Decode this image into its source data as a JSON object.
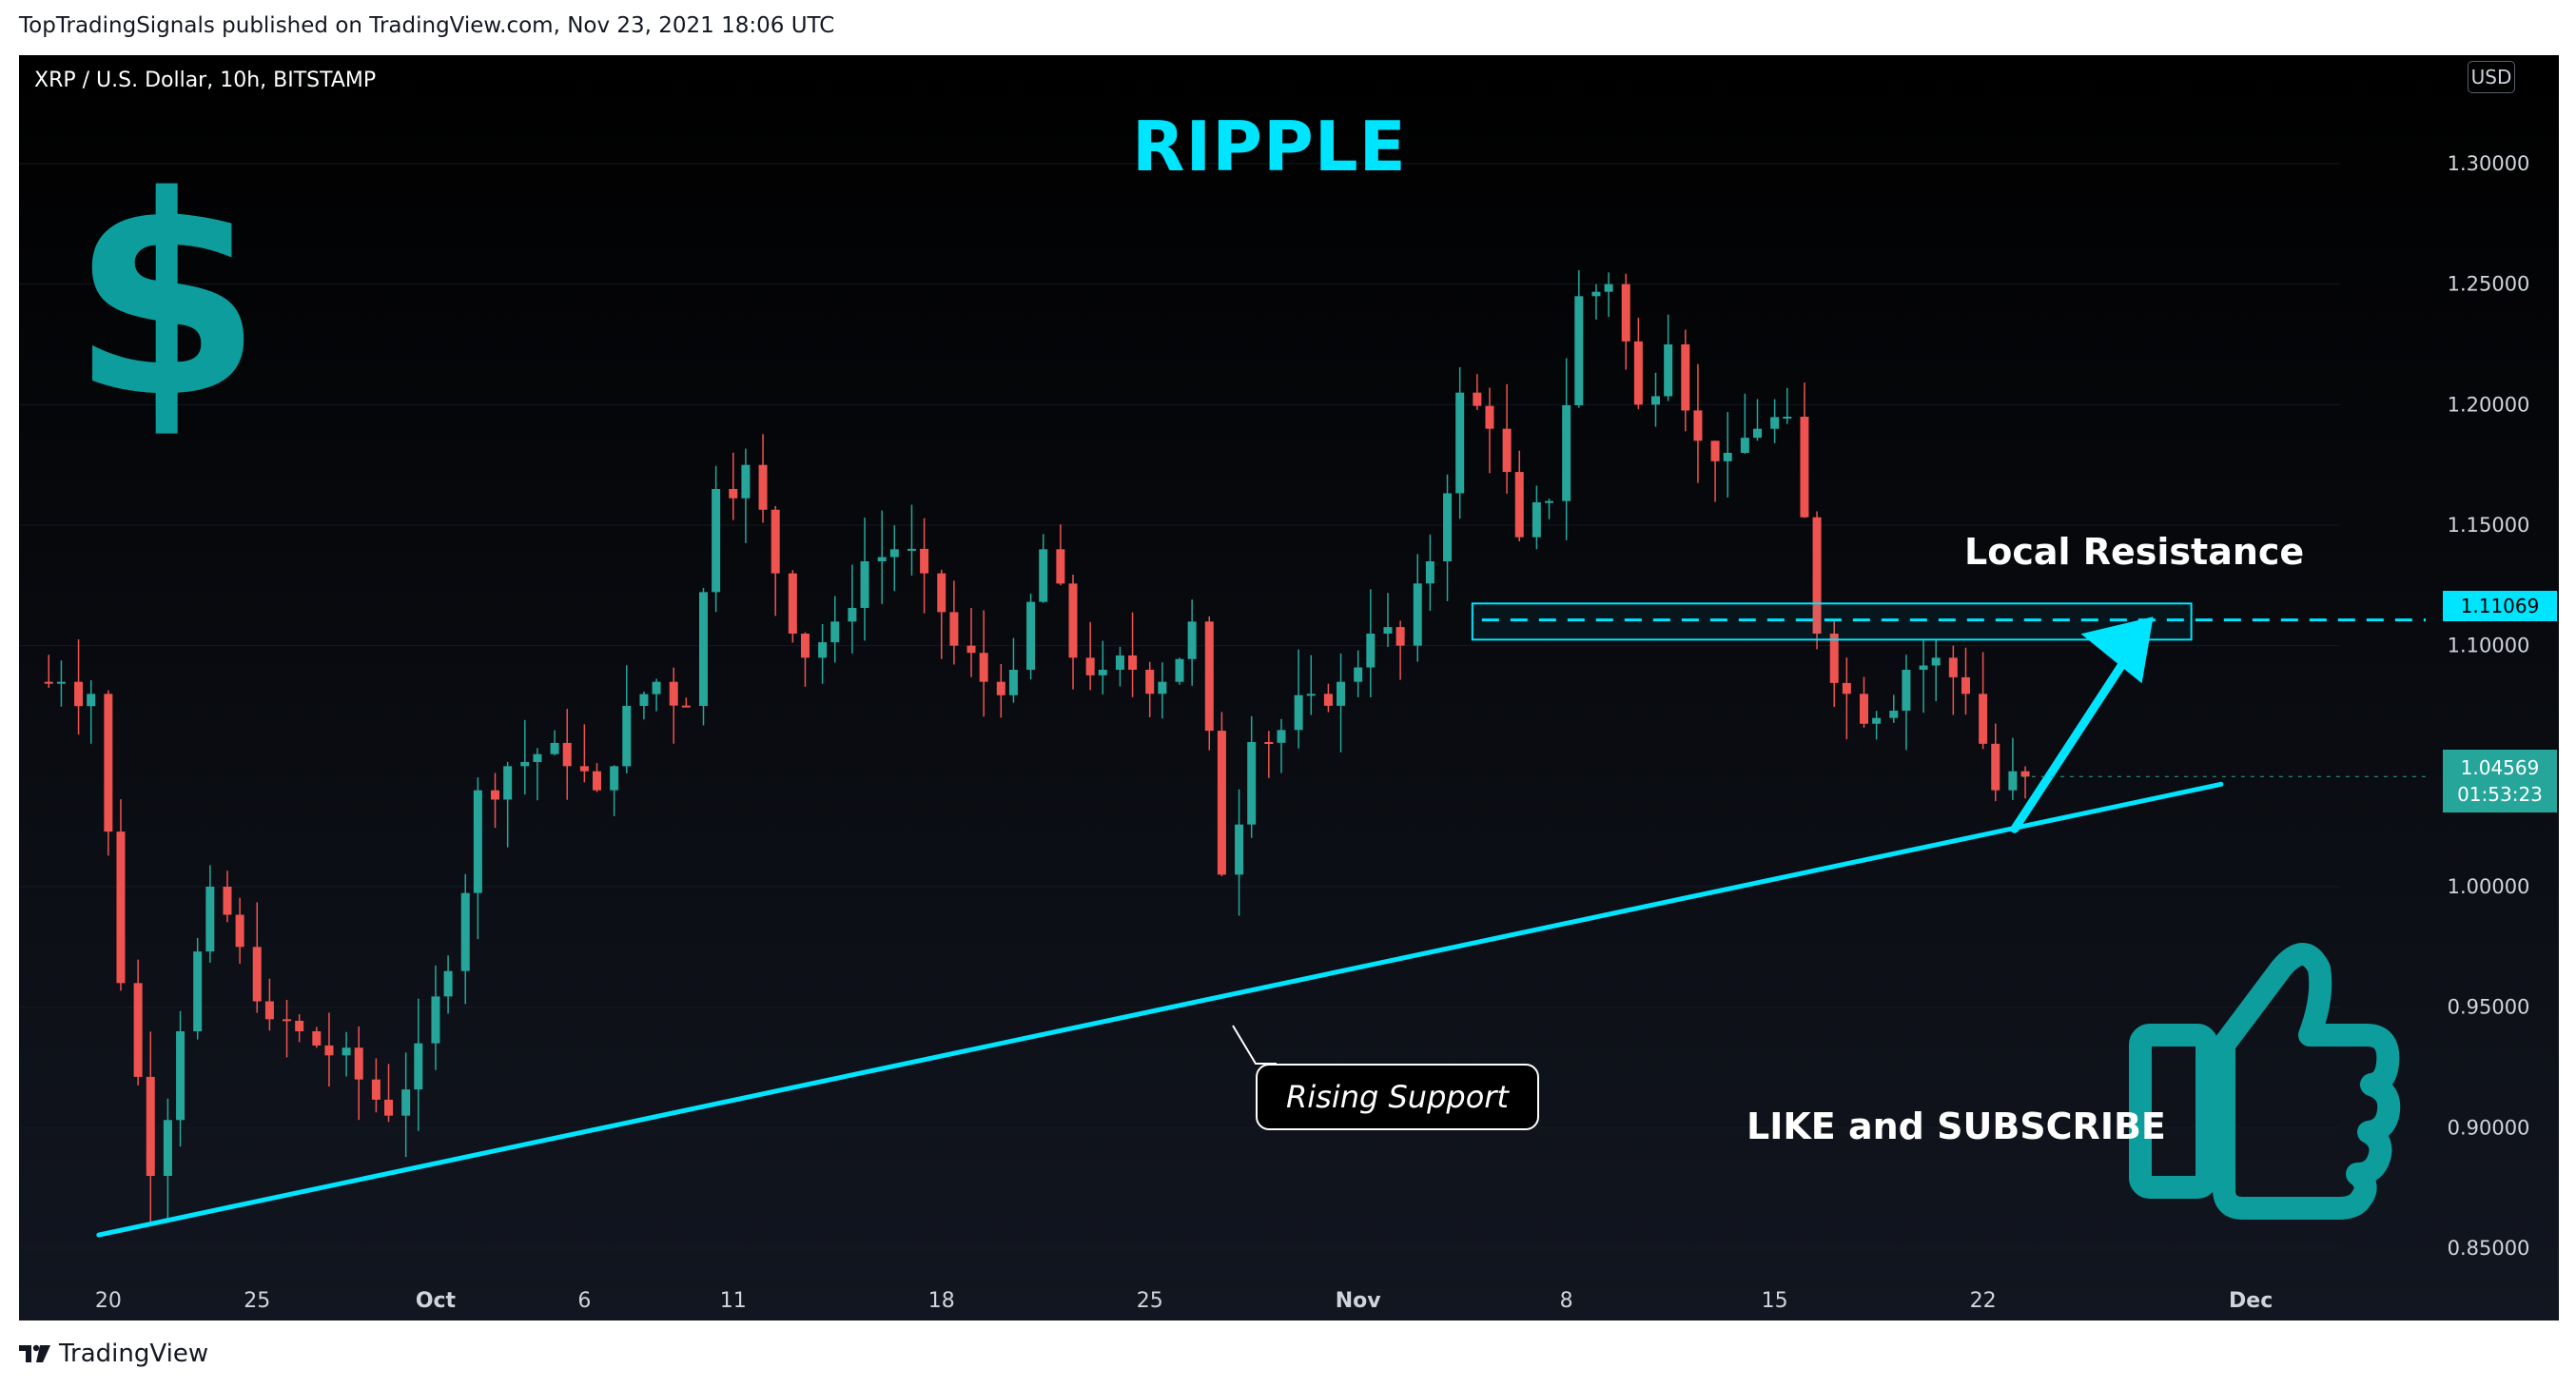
{
  "publisher": "TopTradingSignals published on TradingView.com, Nov 23, 2021 18:06 UTC",
  "symbol_title": "XRP / U.S. Dollar, 10h, BITSTAMP",
  "currency_badge": "USD",
  "annotations": {
    "title": "RIPPLE",
    "resistance_label": "Local Resistance",
    "support_label": "Rising Support",
    "cta_label": "LIKE and SUBSCRIBE"
  },
  "price_tags": {
    "resistance": "1.11069",
    "current_price": "1.04569",
    "countdown": "01:53:23"
  },
  "footer_logo": "TradingView",
  "colors": {
    "accent": "#00e5ff",
    "icon_teal": "#0d9d9d",
    "up_candle": "#26a69a",
    "down_candle": "#ef5350",
    "background": "#000000"
  },
  "icons": [
    "dollar-icon",
    "thumbs-up-icon",
    "tradingview-logo-icon"
  ],
  "chart_data": {
    "type": "candlestick",
    "y_tick_labels": [
      "1.30000",
      "1.25000",
      "1.20000",
      "1.15000",
      "1.10000",
      "1.00000",
      "0.95000",
      "0.90000",
      "0.85000"
    ],
    "y_ticks": [
      1.3,
      1.25,
      1.2,
      1.15,
      1.1,
      1.0,
      0.95,
      0.9,
      0.85
    ],
    "ylim": [
      0.835,
      1.345
    ],
    "x_tick_labels": [
      "20",
      "25",
      "Oct",
      "6",
      "11",
      "18",
      "25",
      "Nov",
      "8",
      "15",
      "22",
      "Dec"
    ],
    "x_ticks": [
      "2021-09-20",
      "2021-09-25",
      "2021-10-01",
      "2021-10-06",
      "2021-10-11",
      "2021-10-18",
      "2021-10-25",
      "2021-11-01",
      "2021-11-08",
      "2021-11-15",
      "2021-11-22",
      "2021-12-01"
    ],
    "xlim": [
      "2021-09-17",
      "2021-12-04"
    ],
    "resistance_level": 1.11069,
    "resistance_zone": [
      1.1025,
      1.1175
    ],
    "support_line": [
      {
        "x": "2021-09-20",
        "y": 0.8555
      },
      {
        "x": "2021-11-30",
        "y": 1.0425
      }
    ],
    "last_price": 1.04569,
    "closes": [
      {
        "x": "2021-09-18",
        "y": 1.085
      },
      {
        "x": "2021-09-19",
        "y": 1.08
      },
      {
        "x": "2021-09-20",
        "y": 0.96
      },
      {
        "x": "2021-09-21",
        "y": 0.88
      },
      {
        "x": "2021-09-22",
        "y": 0.94
      },
      {
        "x": "2021-09-23",
        "y": 1.0
      },
      {
        "x": "2021-09-24",
        "y": 0.975
      },
      {
        "x": "2021-09-25",
        "y": 0.945
      },
      {
        "x": "2021-09-26",
        "y": 0.94
      },
      {
        "x": "2021-09-27",
        "y": 0.93
      },
      {
        "x": "2021-09-28",
        "y": 0.92
      },
      {
        "x": "2021-09-29",
        "y": 0.905
      },
      {
        "x": "2021-09-30",
        "y": 0.935
      },
      {
        "x": "2021-10-01",
        "y": 0.965
      },
      {
        "x": "2021-10-02",
        "y": 1.04
      },
      {
        "x": "2021-10-03",
        "y": 1.05
      },
      {
        "x": "2021-10-04",
        "y": 1.055
      },
      {
        "x": "2021-10-05",
        "y": 1.05
      },
      {
        "x": "2021-10-06",
        "y": 1.04
      },
      {
        "x": "2021-10-07",
        "y": 1.075
      },
      {
        "x": "2021-10-08",
        "y": 1.085
      },
      {
        "x": "2021-10-09",
        "y": 1.075
      },
      {
        "x": "2021-10-10",
        "y": 1.165
      },
      {
        "x": "2021-10-11",
        "y": 1.175
      },
      {
        "x": "2021-10-12",
        "y": 1.13
      },
      {
        "x": "2021-10-13",
        "y": 1.095
      },
      {
        "x": "2021-10-14",
        "y": 1.11
      },
      {
        "x": "2021-10-15",
        "y": 1.135
      },
      {
        "x": "2021-10-16",
        "y": 1.14
      },
      {
        "x": "2021-10-17",
        "y": 1.13
      },
      {
        "x": "2021-10-18",
        "y": 1.1
      },
      {
        "x": "2021-10-19",
        "y": 1.085
      },
      {
        "x": "2021-10-20",
        "y": 1.09
      },
      {
        "x": "2021-10-21",
        "y": 1.14
      },
      {
        "x": "2021-10-22",
        "y": 1.095
      },
      {
        "x": "2021-10-23",
        "y": 1.09
      },
      {
        "x": "2021-10-24",
        "y": 1.09
      },
      {
        "x": "2021-10-25",
        "y": 1.085
      },
      {
        "x": "2021-10-26",
        "y": 1.11
      },
      {
        "x": "2021-10-27",
        "y": 1.005
      },
      {
        "x": "2021-10-28",
        "y": 1.06
      },
      {
        "x": "2021-10-29",
        "y": 1.065
      },
      {
        "x": "2021-10-30",
        "y": 1.08
      },
      {
        "x": "2021-10-31",
        "y": 1.085
      },
      {
        "x": "2021-11-01",
        "y": 1.105
      },
      {
        "x": "2021-11-02",
        "y": 1.1
      },
      {
        "x": "2021-11-03",
        "y": 1.135
      },
      {
        "x": "2021-11-04",
        "y": 1.205
      },
      {
        "x": "2021-11-05",
        "y": 1.19
      },
      {
        "x": "2021-11-06",
        "y": 1.145
      },
      {
        "x": "2021-11-07",
        "y": 1.16
      },
      {
        "x": "2021-11-08",
        "y": 1.245
      },
      {
        "x": "2021-11-09",
        "y": 1.25
      },
      {
        "x": "2021-11-10",
        "y": 1.2
      },
      {
        "x": "2021-11-11",
        "y": 1.225
      },
      {
        "x": "2021-11-12",
        "y": 1.185
      },
      {
        "x": "2021-11-13",
        "y": 1.18
      },
      {
        "x": "2021-11-14",
        "y": 1.19
      },
      {
        "x": "2021-11-15",
        "y": 1.195
      },
      {
        "x": "2021-11-16",
        "y": 1.105
      },
      {
        "x": "2021-11-17",
        "y": 1.08
      },
      {
        "x": "2021-11-18",
        "y": 1.07
      },
      {
        "x": "2021-11-19",
        "y": 1.09
      },
      {
        "x": "2021-11-20",
        "y": 1.095
      },
      {
        "x": "2021-11-21",
        "y": 1.08
      },
      {
        "x": "2021-11-22",
        "y": 1.04
      },
      {
        "x": "2021-11-23",
        "y": 1.04569
      }
    ]
  }
}
